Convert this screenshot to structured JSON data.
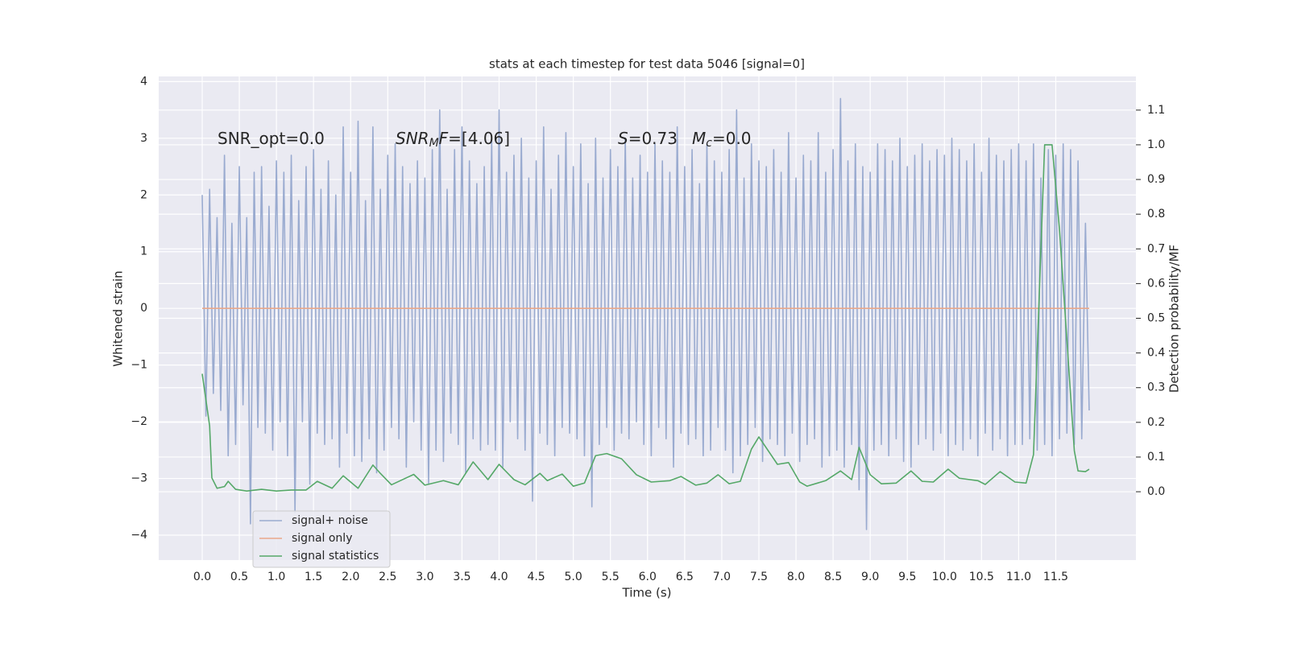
{
  "chart_data": {
    "type": "line",
    "title": "stats at each timestep for test data 5046 [signal=0]",
    "x_label": "Time (s)",
    "y_label": "Whitened strain",
    "y2_label": "Detection probability/MF",
    "grid": true,
    "legend": "lower left",
    "xlim": [
      -0.586,
      12.58
    ],
    "ylim": [
      -4.44,
      4.09
    ],
    "y2lim": [
      -0.197,
      1.197
    ],
    "xticks": [
      {
        "value": 0,
        "label": "0.0"
      },
      0.5,
      {
        "value": 1,
        "label": "1.0"
      },
      1.5,
      {
        "value": 2,
        "label": "2.0"
      },
      2.5,
      {
        "value": 3,
        "label": "3.0"
      },
      3.5,
      {
        "value": 4,
        "label": "4.0"
      },
      4.5,
      {
        "value": 5,
        "label": "5.0"
      },
      5.5,
      {
        "value": 6,
        "label": "6.0"
      },
      6.5,
      {
        "value": 7,
        "label": "7.0"
      },
      7.5,
      {
        "value": 8,
        "label": "8.0"
      },
      8.5,
      {
        "value": 9,
        "label": "9.0"
      },
      9.5,
      {
        "value": 10,
        "label": "10.0"
      },
      10.5,
      {
        "value": 11,
        "label": "11.0"
      },
      11.5
    ],
    "yticks": [
      {
        "value": -4,
        "label": "−4"
      },
      {
        "value": -3,
        "label": "−3"
      },
      {
        "value": -2,
        "label": "−2"
      },
      {
        "value": -1,
        "label": "−1"
      },
      0,
      1,
      2,
      3,
      4
    ],
    "y2ticks": [
      {
        "value": 0,
        "label": "0.0"
      },
      0.1,
      0.2,
      0.3,
      0.4,
      0.5,
      0.6,
      0.7,
      0.8,
      0.9,
      {
        "value": 1,
        "label": "1.0"
      },
      1.1
    ],
    "annotations": [
      [
        {
          "text": "SNR_opt=0.0",
          "style": "normal"
        }
      ],
      [
        {
          "text": "SNR",
          "style": "italic"
        },
        {
          "text": "M",
          "style": "sub"
        },
        {
          "text": "F",
          "style": "italic"
        },
        {
          "text": "=[4.06]",
          "style": "normal"
        }
      ],
      [
        {
          "text": "S",
          "style": "italic"
        },
        {
          "text": "=0.73",
          "style": "normal"
        }
      ],
      [
        {
          "text": "M",
          "style": "italic"
        },
        {
          "text": "c",
          "style": "sub"
        },
        {
          "text": "=0.0",
          "style": "normal"
        }
      ]
    ],
    "series": [
      {
        "name": "signal+ noise",
        "color": "#9aabd0",
        "axis": "y",
        "x": [
          0,
          0.05,
          0.1,
          0.15,
          0.2,
          0.25,
          0.3,
          0.35,
          0.4,
          0.45,
          0.5,
          0.55,
          0.6,
          0.65,
          0.7,
          0.75,
          0.8,
          0.85,
          0.9,
          0.95,
          1,
          1.05,
          1.1,
          1.15,
          1.2,
          1.25,
          1.3,
          1.35,
          1.4,
          1.45,
          1.5,
          1.55,
          1.6,
          1.65,
          1.7,
          1.75,
          1.8,
          1.85,
          1.9,
          1.95,
          2,
          2.05,
          2.1,
          2.15,
          2.2,
          2.25,
          2.3,
          2.35,
          2.4,
          2.45,
          2.5,
          2.55,
          2.6,
          2.65,
          2.7,
          2.75,
          2.8,
          2.85,
          2.9,
          2.95,
          3,
          3.05,
          3.1,
          3.15,
          3.2,
          3.25,
          3.3,
          3.35,
          3.4,
          3.45,
          3.5,
          3.55,
          3.6,
          3.65,
          3.7,
          3.75,
          3.8,
          3.85,
          3.9,
          3.95,
          4,
          4.05,
          4.1,
          4.15,
          4.2,
          4.25,
          4.3,
          4.35,
          4.4,
          4.45,
          4.5,
          4.55,
          4.6,
          4.65,
          4.7,
          4.75,
          4.8,
          4.85,
          4.9,
          4.95,
          5,
          5.05,
          5.1,
          5.15,
          5.2,
          5.25,
          5.3,
          5.35,
          5.4,
          5.45,
          5.5,
          5.55,
          5.6,
          5.65,
          5.7,
          5.75,
          5.8,
          5.85,
          5.9,
          5.95,
          6,
          6.05,
          6.1,
          6.15,
          6.2,
          6.25,
          6.3,
          6.35,
          6.4,
          6.45,
          6.5,
          6.55,
          6.6,
          6.65,
          6.7,
          6.75,
          6.8,
          6.85,
          6.9,
          6.95,
          7,
          7.05,
          7.1,
          7.15,
          7.2,
          7.25,
          7.3,
          7.35,
          7.4,
          7.45,
          7.5,
          7.55,
          7.6,
          7.65,
          7.7,
          7.75,
          7.8,
          7.85,
          7.9,
          7.95,
          8,
          8.05,
          8.1,
          8.15,
          8.2,
          8.25,
          8.3,
          8.35,
          8.4,
          8.45,
          8.5,
          8.55,
          8.6,
          8.65,
          8.7,
          8.75,
          8.8,
          8.85,
          8.9,
          8.95,
          9,
          9.05,
          9.1,
          9.15,
          9.2,
          9.25,
          9.3,
          9.35,
          9.4,
          9.45,
          9.5,
          9.55,
          9.6,
          9.65,
          9.7,
          9.75,
          9.8,
          9.85,
          9.9,
          9.95,
          10,
          10.05,
          10.1,
          10.15,
          10.2,
          10.25,
          10.3,
          10.35,
          10.4,
          10.45,
          10.5,
          10.55,
          10.6,
          10.65,
          10.7,
          10.75,
          10.8,
          10.85,
          10.9,
          10.95,
          11,
          11.05,
          11.1,
          11.15,
          11.2,
          11.25,
          11.3,
          11.35,
          11.4,
          11.45,
          11.5,
          11.55,
          11.6,
          11.65,
          11.7,
          11.75,
          11.8,
          11.85,
          11.9,
          11.95
        ],
        "values": [
          2.0,
          -1.9,
          2.1,
          -1.5,
          1.6,
          -1.8,
          2.7,
          -2.6,
          1.5,
          -2.4,
          2.5,
          -1.7,
          1.6,
          -3.8,
          2.4,
          -2.1,
          2.5,
          -2.2,
          1.8,
          -2.5,
          2.6,
          -2.0,
          2.4,
          -2.6,
          2.7,
          -3.6,
          1.9,
          -2.0,
          2.5,
          -3.1,
          2.8,
          -2.2,
          2.1,
          -2.4,
          2.6,
          -2.3,
          2.0,
          -2.8,
          3.2,
          -2.2,
          2.4,
          -2.6,
          3.3,
          -2.7,
          1.9,
          -2.3,
          3.2,
          -2.9,
          2.1,
          -2.5,
          2.7,
          -2.1,
          2.9,
          -2.3,
          2.5,
          -2.8,
          2.2,
          -2.0,
          2.6,
          -2.5,
          2.3,
          -3.1,
          2.8,
          -2.5,
          3.5,
          -2.7,
          2.1,
          -2.2,
          2.8,
          -2.4,
          3.2,
          -2.9,
          2.6,
          -2.3,
          2.2,
          -2.5,
          2.5,
          -2.4,
          3.0,
          -2.5,
          3.5,
          -2.8,
          2.4,
          -2.0,
          2.7,
          -2.3,
          3.0,
          -2.5,
          2.3,
          -3.4,
          2.6,
          -2.2,
          3.2,
          -2.4,
          2.1,
          -2.6,
          2.7,
          -2.1,
          3.1,
          -2.2,
          2.5,
          -2.3,
          2.9,
          -2.6,
          2.2,
          -3.5,
          3.0,
          -2.4,
          2.3,
          -2.1,
          2.8,
          -2.5,
          2.5,
          -2.2,
          3.0,
          -2.3,
          2.3,
          -2.0,
          2.7,
          -2.4,
          2.4,
          -2.6,
          2.9,
          -2.1,
          2.6,
          -2.3,
          2.4,
          -2.8,
          3.2,
          -2.2,
          2.5,
          -2.4,
          2.8,
          -2.3,
          2.2,
          -2.6,
          2.9,
          -2.5,
          2.6,
          -2.1,
          2.4,
          -2.5,
          2.8,
          -2.9,
          3.5,
          -2.6,
          2.3,
          -2.4,
          2.9,
          -2.1,
          2.6,
          -2.7,
          2.5,
          -2.3,
          2.8,
          -2.4,
          2.4,
          -2.6,
          3.1,
          -2.2,
          2.3,
          -2.7,
          2.7,
          -2.4,
          2.6,
          -2.3,
          3.1,
          -2.8,
          2.4,
          -2.6,
          2.8,
          -2.5,
          3.7,
          -2.8,
          2.6,
          -2.4,
          2.9,
          -3.2,
          2.5,
          -3.9,
          2.4,
          -2.5,
          2.9,
          -2.4,
          2.8,
          -2.6,
          2.6,
          -2.3,
          3.0,
          -2.7,
          2.5,
          -2.8,
          2.7,
          -2.4,
          2.9,
          -2.3,
          2.6,
          -2.5,
          2.8,
          -2.2,
          2.7,
          -2.6,
          3.0,
          -2.4,
          2.8,
          -2.5,
          2.6,
          -2.3,
          2.9,
          -2.6,
          2.4,
          -2.2,
          3.0,
          -2.5,
          2.7,
          -2.3,
          2.6,
          -2.6,
          2.8,
          -2.4,
          2.9,
          -2.4,
          2.6,
          -2.3,
          2.9,
          -2.5,
          2.3,
          -2.4,
          2.8,
          -2.6,
          2.7,
          -2.3,
          2.9,
          -2.2,
          2.8,
          -2.4,
          2.6,
          -2.3,
          1.5,
          -1.8
        ]
      },
      {
        "name": "signal only",
        "color": "#e9a88a",
        "axis": "y",
        "x": [
          0,
          11.95
        ],
        "values": [
          0,
          0
        ]
      },
      {
        "name": "signal statistics",
        "color": "#55a868",
        "axis": "y2",
        "x": [
          0,
          0.1,
          0.13,
          0.2,
          0.3,
          0.35,
          0.45,
          0.6,
          0.8,
          1.0,
          1.2,
          1.4,
          1.55,
          1.75,
          1.9,
          2.1,
          2.3,
          2.4,
          2.55,
          2.85,
          3.0,
          3.25,
          3.45,
          3.65,
          3.85,
          4.0,
          4.2,
          4.35,
          4.55,
          4.65,
          4.85,
          5.0,
          5.15,
          5.3,
          5.45,
          5.65,
          5.85,
          6.05,
          6.3,
          6.45,
          6.65,
          6.8,
          6.95,
          7.1,
          7.25,
          7.4,
          7.5,
          7.75,
          7.9,
          8.05,
          8.15,
          8.4,
          8.6,
          8.75,
          8.85,
          9.0,
          9.15,
          9.35,
          9.55,
          9.7,
          9.85,
          10.05,
          10.2,
          10.45,
          10.55,
          10.75,
          10.95,
          11.1,
          11.2,
          11.35,
          11.45,
          11.55,
          11.75,
          11.8,
          11.9,
          11.95
        ],
        "values": [
          0.34,
          0.19,
          0.04,
          0.01,
          0.015,
          0.03,
          0.007,
          0.002,
          0.007,
          0.002,
          0.005,
          0.005,
          0.03,
          0.01,
          0.046,
          0.01,
          0.077,
          0.053,
          0.02,
          0.05,
          0.019,
          0.032,
          0.02,
          0.086,
          0.035,
          0.079,
          0.035,
          0.02,
          0.053,
          0.032,
          0.051,
          0.016,
          0.025,
          0.104,
          0.11,
          0.095,
          0.049,
          0.028,
          0.032,
          0.044,
          0.019,
          0.025,
          0.049,
          0.023,
          0.03,
          0.123,
          0.158,
          0.079,
          0.084,
          0.028,
          0.016,
          0.032,
          0.06,
          0.035,
          0.128,
          0.049,
          0.023,
          0.025,
          0.06,
          0.03,
          0.028,
          0.065,
          0.039,
          0.032,
          0.021,
          0.058,
          0.028,
          0.025,
          0.107,
          1.0,
          1.0,
          0.756,
          0.118,
          0.06,
          0.058,
          0.065
        ]
      }
    ]
  }
}
